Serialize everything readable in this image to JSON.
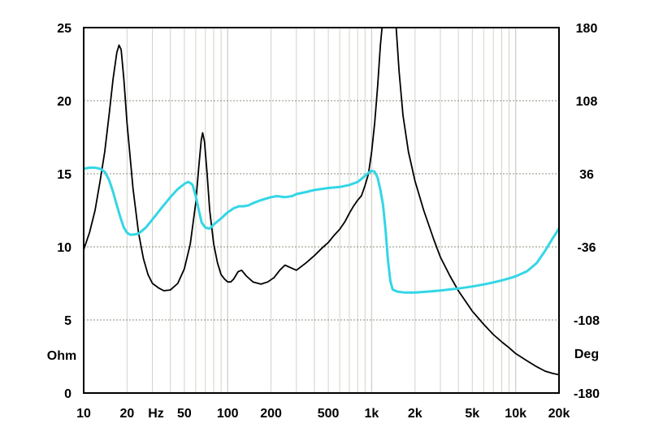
{
  "chart_data": {
    "type": "line",
    "title": "",
    "xscale": "log",
    "xlim": [
      10,
      20000
    ],
    "xticks": [
      {
        "value": 10,
        "label": "10"
      },
      {
        "value": 20,
        "label": "20"
      },
      {
        "value": 50,
        "label": "50"
      },
      {
        "value": 100,
        "label": "100"
      },
      {
        "value": 200,
        "label": "200"
      },
      {
        "value": 500,
        "label": "500"
      },
      {
        "value": 1000,
        "label": "1k"
      },
      {
        "value": 2000,
        "label": "2k"
      },
      {
        "value": 5000,
        "label": "5k"
      },
      {
        "value": 10000,
        "label": "10k"
      },
      {
        "value": 20000,
        "label": "20k"
      }
    ],
    "xunit": "Hz",
    "left_axis": {
      "unit": "Ohm",
      "ylim": [
        0,
        25
      ],
      "ticks": [
        0,
        5,
        10,
        15,
        20,
        25
      ]
    },
    "right_axis": {
      "unit": "Deg",
      "ylim": [
        -180,
        180
      ],
      "ticks": [
        -180,
        -108,
        -36,
        36,
        108,
        180
      ]
    },
    "grid": true,
    "colors": {
      "impedance": "#000000",
      "phase": "#33d6e6",
      "grid": "#d2d2c8",
      "background": "#ffffff",
      "frame": "#000000"
    },
    "series": [
      {
        "key": "impedance",
        "axis": "left",
        "points": [
          [
            10,
            9.8
          ],
          [
            11,
            11.0
          ],
          [
            12,
            12.5
          ],
          [
            13,
            14.5
          ],
          [
            14,
            16.5
          ],
          [
            15,
            19.0
          ],
          [
            16,
            21.5
          ],
          [
            17,
            23.3
          ],
          [
            17.6,
            23.8
          ],
          [
            18.2,
            23.5
          ],
          [
            19,
            21.5
          ],
          [
            20,
            18.5
          ],
          [
            22,
            14.0
          ],
          [
            24,
            11.0
          ],
          [
            26,
            9.2
          ],
          [
            28,
            8.1
          ],
          [
            30,
            7.5
          ],
          [
            33,
            7.2
          ],
          [
            36,
            7.0
          ],
          [
            40,
            7.05
          ],
          [
            45,
            7.5
          ],
          [
            50,
            8.5
          ],
          [
            55,
            10.2
          ],
          [
            60,
            13.0
          ],
          [
            63,
            15.5
          ],
          [
            65.5,
            17.3
          ],
          [
            67,
            17.8
          ],
          [
            69,
            17.2
          ],
          [
            72,
            15.0
          ],
          [
            75,
            12.5
          ],
          [
            80,
            10.2
          ],
          [
            85,
            8.9
          ],
          [
            90,
            8.1
          ],
          [
            95,
            7.8
          ],
          [
            100,
            7.6
          ],
          [
            105,
            7.6
          ],
          [
            110,
            7.8
          ],
          [
            118,
            8.3
          ],
          [
            125,
            8.4
          ],
          [
            135,
            8.0
          ],
          [
            150,
            7.6
          ],
          [
            170,
            7.45
          ],
          [
            190,
            7.6
          ],
          [
            210,
            7.9
          ],
          [
            230,
            8.4
          ],
          [
            250,
            8.75
          ],
          [
            270,
            8.6
          ],
          [
            300,
            8.4
          ],
          [
            350,
            8.9
          ],
          [
            400,
            9.4
          ],
          [
            450,
            9.9
          ],
          [
            500,
            10.3
          ],
          [
            550,
            10.8
          ],
          [
            600,
            11.2
          ],
          [
            650,
            11.7
          ],
          [
            700,
            12.3
          ],
          [
            750,
            12.8
          ],
          [
            800,
            13.2
          ],
          [
            850,
            13.5
          ],
          [
            900,
            14.2
          ],
          [
            950,
            15.0
          ],
          [
            1000,
            16.5
          ],
          [
            1050,
            18.5
          ],
          [
            1100,
            21.0
          ],
          [
            1150,
            23.8
          ],
          [
            1180,
            25.0
          ],
          [
            1480,
            25.0
          ],
          [
            1550,
            22.0
          ],
          [
            1650,
            19.0
          ],
          [
            1800,
            16.5
          ],
          [
            2000,
            14.5
          ],
          [
            2300,
            12.5
          ],
          [
            2700,
            10.5
          ],
          [
            3000,
            9.3
          ],
          [
            3500,
            8.0
          ],
          [
            4000,
            7.0
          ],
          [
            5000,
            5.6
          ],
          [
            6000,
            4.7
          ],
          [
            7000,
            4.0
          ],
          [
            8000,
            3.5
          ],
          [
            9000,
            3.1
          ],
          [
            10000,
            2.7
          ],
          [
            12000,
            2.2
          ],
          [
            14000,
            1.8
          ],
          [
            16000,
            1.5
          ],
          [
            18000,
            1.35
          ],
          [
            20000,
            1.25
          ]
        ]
      },
      {
        "key": "phase",
        "axis": "right",
        "points": [
          [
            10,
            41
          ],
          [
            11,
            42
          ],
          [
            12,
            42
          ],
          [
            13,
            41
          ],
          [
            14,
            38
          ],
          [
            15,
            30
          ],
          [
            16,
            18
          ],
          [
            17,
            5
          ],
          [
            18,
            -7
          ],
          [
            19,
            -17
          ],
          [
            20,
            -22
          ],
          [
            21,
            -24
          ],
          [
            22,
            -24
          ],
          [
            24,
            -23
          ],
          [
            27,
            -17
          ],
          [
            30,
            -9
          ],
          [
            35,
            3
          ],
          [
            40,
            13
          ],
          [
            45,
            21
          ],
          [
            50,
            26
          ],
          [
            53,
            28
          ],
          [
            55,
            27
          ],
          [
            57,
            25
          ],
          [
            60,
            14
          ],
          [
            63,
            0
          ],
          [
            66,
            -12
          ],
          [
            70,
            -17
          ],
          [
            75,
            -18
          ],
          [
            80,
            -14
          ],
          [
            90,
            -8
          ],
          [
            100,
            -2
          ],
          [
            110,
            2
          ],
          [
            120,
            4
          ],
          [
            130,
            4
          ],
          [
            140,
            5
          ],
          [
            150,
            7
          ],
          [
            170,
            10
          ],
          [
            200,
            13
          ],
          [
            220,
            14
          ],
          [
            250,
            13
          ],
          [
            280,
            14
          ],
          [
            300,
            16
          ],
          [
            350,
            18
          ],
          [
            400,
            20
          ],
          [
            500,
            22
          ],
          [
            600,
            23
          ],
          [
            700,
            25
          ],
          [
            800,
            28
          ],
          [
            850,
            31
          ],
          [
            900,
            34
          ],
          [
            950,
            37
          ],
          [
            1000,
            39
          ],
          [
            1050,
            38
          ],
          [
            1100,
            32
          ],
          [
            1150,
            20
          ],
          [
            1200,
            5
          ],
          [
            1250,
            -20
          ],
          [
            1300,
            -50
          ],
          [
            1350,
            -70
          ],
          [
            1400,
            -78
          ],
          [
            1500,
            -80
          ],
          [
            1700,
            -81
          ],
          [
            2000,
            -81
          ],
          [
            2500,
            -80
          ],
          [
            3000,
            -79
          ],
          [
            4000,
            -77
          ],
          [
            5000,
            -75
          ],
          [
            6000,
            -73
          ],
          [
            7000,
            -71
          ],
          [
            8000,
            -69
          ],
          [
            9000,
            -67
          ],
          [
            10000,
            -65
          ],
          [
            12000,
            -60
          ],
          [
            14000,
            -52
          ],
          [
            16000,
            -40
          ],
          [
            18000,
            -28
          ],
          [
            20000,
            -18
          ]
        ]
      }
    ]
  }
}
